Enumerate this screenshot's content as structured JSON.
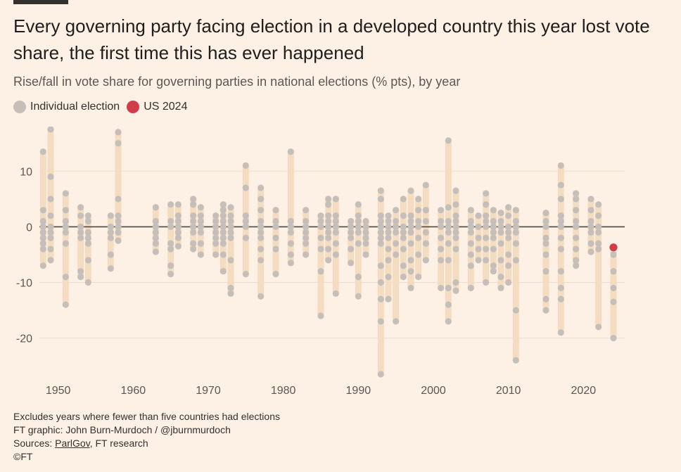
{
  "header": {
    "title": "Every governing party facing election in a developed country this year lost vote share, the first time this has ever happened",
    "subtitle": "Rise/fall in vote share for governing parties in national elections (% pts), by year"
  },
  "legend": {
    "items": [
      {
        "label": "Individual election",
        "color": "#c6bfb9"
      },
      {
        "label": "US 2024",
        "color": "#d03c47"
      }
    ]
  },
  "colors": {
    "dot": "#c6bfb9",
    "highlight": "#d03c47",
    "range_bar": "#f4dcc1",
    "zero_line": "#4a4744",
    "grid": "#ebdccd",
    "background": "#fdf1e5"
  },
  "chart_data": {
    "type": "scatter",
    "xlabel": "",
    "ylabel": "",
    "xlim": [
      1947.5,
      2025.5
    ],
    "ylim": [
      -27,
      18
    ],
    "xticks": [
      1950,
      1960,
      1970,
      1980,
      1990,
      2000,
      2010,
      2020
    ],
    "yticks": [
      10,
      0,
      -10,
      -20
    ],
    "grid": true,
    "legend_position": "top-left",
    "highlight": {
      "name": "US 2024",
      "x": 2024,
      "y": -3.7
    },
    "series": [
      {
        "name": "Individual election",
        "points": [
          {
            "x": 1948,
            "y": [
              13.5,
              3,
              1,
              0,
              -1,
              -2,
              -3,
              -4,
              -7
            ]
          },
          {
            "x": 1949,
            "y": [
              17.5,
              9,
              5,
              2,
              0,
              -1,
              -2,
              -4,
              -6
            ]
          },
          {
            "x": 1951,
            "y": [
              6,
              3,
              1,
              0,
              -1,
              -3,
              -9,
              -14
            ]
          },
          {
            "x": 1953,
            "y": [
              3.5,
              2,
              0,
              -1,
              -2,
              -8,
              -9
            ]
          },
          {
            "x": 1954,
            "y": [
              2,
              1,
              -1,
              -2,
              -3,
              -6,
              -10
            ]
          },
          {
            "x": 1957,
            "y": [
              2,
              0,
              -1,
              -2,
              -5,
              -7.5
            ]
          },
          {
            "x": 1958,
            "y": [
              17,
              15,
              5,
              2,
              1,
              0,
              -1,
              -2.5
            ]
          },
          {
            "x": 1963,
            "y": [
              3.5,
              1,
              0,
              -1,
              -2,
              -3,
              -4.5
            ]
          },
          {
            "x": 1965,
            "y": [
              4,
              1,
              0,
              -3,
              -4,
              -7,
              -8.5
            ]
          },
          {
            "x": 1966,
            "y": [
              4,
              2,
              1,
              0,
              -1,
              -2,
              -3.5
            ]
          },
          {
            "x": 1968,
            "y": [
              5,
              4,
              2,
              1,
              0,
              -1,
              -3,
              -4
            ]
          },
          {
            "x": 1969,
            "y": [
              3.5,
              2,
              1,
              0,
              -1,
              -3,
              -5
            ]
          },
          {
            "x": 1971,
            "y": [
              2,
              1,
              0,
              -1,
              -2,
              -3,
              -5
            ]
          },
          {
            "x": 1972,
            "y": [
              4,
              3,
              2,
              1,
              0,
              -1,
              -2,
              -3,
              -5,
              -8
            ]
          },
          {
            "x": 1973,
            "y": [
              3.5,
              2,
              1,
              0,
              -1,
              -2,
              -6,
              -11,
              -12
            ]
          },
          {
            "x": 1975,
            "y": [
              11,
              7,
              2,
              1,
              0,
              -2,
              -8.5
            ]
          },
          {
            "x": 1977,
            "y": [
              7,
              5,
              3,
              1,
              0,
              -1,
              -2,
              -4,
              -6,
              -12.5
            ]
          },
          {
            "x": 1979,
            "y": [
              3,
              1,
              0,
              -2,
              -4,
              -8.5
            ]
          },
          {
            "x": 1981,
            "y": [
              13.5,
              1,
              0,
              -1,
              -3,
              -5,
              -6.5
            ]
          },
          {
            "x": 1983,
            "y": [
              3,
              1,
              0,
              -1,
              -2,
              -3,
              -5
            ]
          },
          {
            "x": 1985,
            "y": [
              2,
              1,
              0,
              -2,
              -4,
              -8,
              -16
            ]
          },
          {
            "x": 1986,
            "y": [
              5,
              4,
              2,
              1,
              0,
              -1,
              -2,
              -4,
              -6
            ]
          },
          {
            "x": 1987,
            "y": [
              5,
              2,
              1,
              0,
              -1,
              -3,
              -5,
              -12
            ]
          },
          {
            "x": 1989,
            "y": [
              1,
              0,
              -1,
              -2,
              -4,
              -6.5
            ]
          },
          {
            "x": 1990,
            "y": [
              4,
              2,
              1,
              0,
              -1,
              -3,
              -9,
              -12.5
            ]
          },
          {
            "x": 1991,
            "y": [
              1,
              0,
              -1,
              -2,
              -3,
              -5
            ]
          },
          {
            "x": 1993,
            "y": [
              6.5,
              5,
              2,
              1,
              0,
              -1,
              -2,
              -3,
              -7,
              -10,
              -13,
              -17,
              -26.5
            ]
          },
          {
            "x": 1994,
            "y": [
              2,
              1,
              0,
              -1,
              -2,
              -4,
              -6,
              -9,
              -13
            ]
          },
          {
            "x": 1995,
            "y": [
              3,
              1,
              0,
              -1,
              -3,
              -5,
              -17
            ]
          },
          {
            "x": 1996,
            "y": [
              5,
              2,
              0,
              -1,
              -2,
              -4,
              -7,
              -9
            ]
          },
          {
            "x": 1997,
            "y": [
              6.5,
              2,
              1,
              0,
              -1,
              -3,
              -6,
              -8,
              -11
            ]
          },
          {
            "x": 1998,
            "y": [
              5,
              3,
              1,
              0,
              -2,
              -5,
              -9
            ]
          },
          {
            "x": 1999,
            "y": [
              7.5,
              3,
              1,
              -1,
              -3,
              -6
            ]
          },
          {
            "x": 2001,
            "y": [
              3,
              1,
              0,
              -2,
              -4,
              -6,
              -11
            ]
          },
          {
            "x": 2002,
            "y": [
              15.5,
              3.5,
              1,
              0,
              -1,
              -3,
              -6,
              -11,
              -14,
              -17
            ]
          },
          {
            "x": 2003,
            "y": [
              6.5,
              4,
              2,
              1,
              0,
              -1,
              -2,
              -4,
              -10,
              -11.5
            ]
          },
          {
            "x": 2005,
            "y": [
              3,
              1,
              0,
              -1,
              -3,
              -5,
              -7,
              -11
            ]
          },
          {
            "x": 2006,
            "y": [
              2,
              0,
              -2,
              -4,
              -6
            ]
          },
          {
            "x": 2007,
            "y": [
              6,
              4,
              2,
              1,
              0,
              -2,
              -4,
              -6,
              -10
            ]
          },
          {
            "x": 2008,
            "y": [
              3,
              1,
              0,
              -1,
              -2,
              -4,
              -7,
              -8
            ]
          },
          {
            "x": 2009,
            "y": [
              2.5,
              1,
              0,
              -1,
              -3,
              -6,
              -9,
              -11
            ]
          },
          {
            "x": 2010,
            "y": [
              3.5,
              2,
              0,
              -1,
              -2,
              -5,
              -7,
              -10
            ]
          },
          {
            "x": 2011,
            "y": [
              3,
              1,
              0,
              -1,
              -3,
              -6,
              -15,
              -24
            ]
          },
          {
            "x": 2015,
            "y": [
              2.5,
              1,
              0,
              -2,
              -3,
              -5,
              -8,
              -13,
              -15
            ]
          },
          {
            "x": 2017,
            "y": [
              11,
              7.5,
              5,
              2,
              1,
              0,
              -2,
              -4,
              -8,
              -11,
              -13,
              -19
            ]
          },
          {
            "x": 2019,
            "y": [
              6,
              5,
              3,
              1,
              0,
              -2,
              -4,
              -6,
              -7
            ]
          },
          {
            "x": 2021,
            "y": [
              5,
              3,
              1,
              0,
              -1,
              -3,
              -4.5
            ]
          },
          {
            "x": 2022,
            "y": [
              4,
              2,
              0,
              -1,
              -3,
              -4,
              -18
            ]
          },
          {
            "x": 2024,
            "y": [
              -5,
              -8,
              -11,
              -13.5,
              -20
            ]
          }
        ]
      }
    ]
  },
  "footer": {
    "note": "Excludes years where fewer than five countries had elections",
    "credit": "FT graphic: John Burn-Murdoch / @jburnmurdoch",
    "sources_label": "Sources: ",
    "sources_link": "ParlGov",
    "sources_rest": ", FT research",
    "copyright": "©FT"
  }
}
